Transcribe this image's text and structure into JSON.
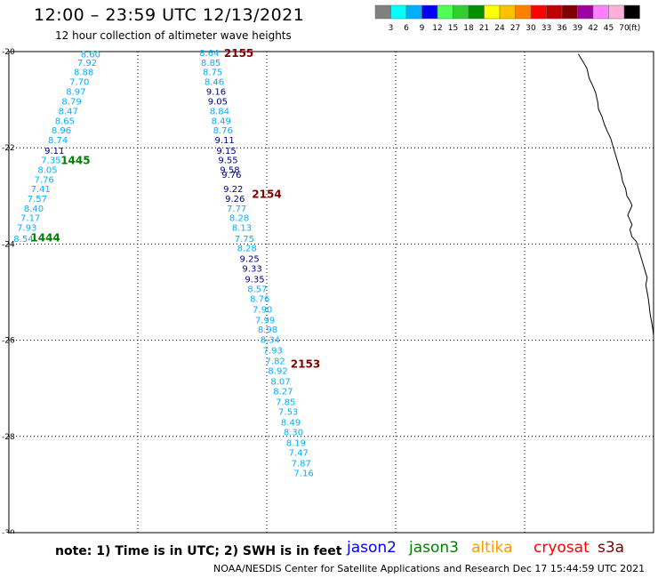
{
  "header": {
    "title": "12:00 – 23:59 UTC 12/13/2021",
    "subtitle": "12 hour collection of altimeter wave heights"
  },
  "colorbar": {
    "unit_label": "(ft)",
    "colors": [
      "#808080",
      "#00ffff",
      "#00b0ff",
      "#0000ff",
      "#50ff50",
      "#30d030",
      "#009000",
      "#ffff00",
      "#ffc000",
      "#ff8000",
      "#ff0000",
      "#c00000",
      "#800000",
      "#a000a0",
      "#ff80ff",
      "#ffb0d8",
      "#000000"
    ],
    "labels": [
      "3",
      "6",
      "9",
      "12",
      "15",
      "18",
      "21",
      "24",
      "27",
      "30",
      "33",
      "36",
      "39",
      "42",
      "45",
      "70"
    ]
  },
  "chart_data": {
    "type": "map",
    "xlim": [
      0,
      15
    ],
    "ylim": [
      -30,
      -20
    ],
    "x_ticks": [
      "0",
      "3",
      "6",
      "9",
      "12",
      "15"
    ],
    "y_ticks": [
      "-20",
      "-22",
      "-24",
      "-26",
      "-28",
      "-30"
    ],
    "passes": [
      {
        "id": "pass-left",
        "labels": [
          {
            "text": "1445",
            "color": "#008000",
            "x": 1.55,
            "y": -22.25
          },
          {
            "text": "1444",
            "color": "#008000",
            "x": 0.85,
            "y": -23.85
          }
        ],
        "points": [
          {
            "x": 1.9,
            "y": -20.05,
            "v": "8.60",
            "c": "#00b0ff"
          },
          {
            "x": 1.82,
            "y": -20.22,
            "v": "7.92",
            "c": "#00b0ff"
          },
          {
            "x": 1.74,
            "y": -20.42,
            "v": "8.88",
            "c": "#00b0ff"
          },
          {
            "x": 1.64,
            "y": -20.62,
            "v": "7.70",
            "c": "#00b0ff"
          },
          {
            "x": 1.56,
            "y": -20.82,
            "v": "8.97",
            "c": "#00b0ff"
          },
          {
            "x": 1.46,
            "y": -21.03,
            "v": "8.79",
            "c": "#00b0ff"
          },
          {
            "x": 1.38,
            "y": -21.23,
            "v": "8.47",
            "c": "#00b0ff"
          },
          {
            "x": 1.3,
            "y": -21.43,
            "v": "8.65",
            "c": "#00b0ff"
          },
          {
            "x": 1.22,
            "y": -21.63,
            "v": "8.96",
            "c": "#00b0ff"
          },
          {
            "x": 1.14,
            "y": -21.83,
            "v": "8.74",
            "c": "#00b0ff"
          },
          {
            "x": 1.06,
            "y": -22.05,
            "v": "9.11",
            "c": "#000080"
          },
          {
            "x": 0.98,
            "y": -22.25,
            "v": "7.35",
            "c": "#00b0ff"
          },
          {
            "x": 0.9,
            "y": -22.45,
            "v": "8.05",
            "c": "#00b0ff"
          },
          {
            "x": 0.82,
            "y": -22.65,
            "v": "7.76",
            "c": "#00b0ff"
          },
          {
            "x": 0.74,
            "y": -22.85,
            "v": "7.41",
            "c": "#00b0ff"
          },
          {
            "x": 0.66,
            "y": -23.05,
            "v": "7.57",
            "c": "#00b0ff"
          },
          {
            "x": 0.58,
            "y": -23.25,
            "v": "8.40",
            "c": "#00b0ff"
          },
          {
            "x": 0.5,
            "y": -23.45,
            "v": "7.17",
            "c": "#00b0ff"
          },
          {
            "x": 0.42,
            "y": -23.65,
            "v": "7.93",
            "c": "#00b0ff"
          },
          {
            "x": 0.34,
            "y": -23.88,
            "v": "8.54",
            "c": "#00b0ff"
          }
        ]
      },
      {
        "id": "pass-right",
        "labels": [
          {
            "text": "2155",
            "color": "#800000",
            "x": 5.35,
            "y": -20.02
          },
          {
            "text": "2154",
            "color": "#800000",
            "x": 6.0,
            "y": -22.95
          },
          {
            "text": "2153",
            "color": "#800000",
            "x": 6.9,
            "y": -26.48
          }
        ],
        "points": [
          {
            "x": 4.66,
            "y": -20.02,
            "v": "8.64",
            "c": "#00b0ff"
          },
          {
            "x": 4.7,
            "y": -20.22,
            "v": "8.85",
            "c": "#00b0ff"
          },
          {
            "x": 4.74,
            "y": -20.42,
            "v": "8.75",
            "c": "#00b0ff"
          },
          {
            "x": 4.78,
            "y": -20.62,
            "v": "8.46",
            "c": "#00b0ff"
          },
          {
            "x": 4.82,
            "y": -20.82,
            "v": "9.16",
            "c": "#000080"
          },
          {
            "x": 4.86,
            "y": -21.03,
            "v": "9.05",
            "c": "#000080"
          },
          {
            "x": 4.9,
            "y": -21.23,
            "v": "8.84",
            "c": "#00b0ff"
          },
          {
            "x": 4.94,
            "y": -21.43,
            "v": "8.49",
            "c": "#00b0ff"
          },
          {
            "x": 4.98,
            "y": -21.63,
            "v": "8.76",
            "c": "#00b0ff"
          },
          {
            "x": 5.02,
            "y": -21.83,
            "v": "9.11",
            "c": "#000080"
          },
          {
            "x": 5.06,
            "y": -22.05,
            "v": "9.15",
            "c": "#000080"
          },
          {
            "x": 5.1,
            "y": -22.25,
            "v": "9.55",
            "c": "#000080"
          },
          {
            "x": 5.14,
            "y": -22.45,
            "v": "9.58",
            "c": "#000080"
          },
          {
            "x": 5.18,
            "y": -22.55,
            "v": "9.76",
            "c": "#000080"
          },
          {
            "x": 5.22,
            "y": -22.85,
            "v": "9.22",
            "c": "#000080"
          },
          {
            "x": 5.26,
            "y": -23.05,
            "v": "9.26",
            "c": "#000080"
          },
          {
            "x": 5.3,
            "y": -23.25,
            "v": "7.77",
            "c": "#00b0ff"
          },
          {
            "x": 5.36,
            "y": -23.45,
            "v": "8.28",
            "c": "#00b0ff"
          },
          {
            "x": 5.42,
            "y": -23.65,
            "v": "8.13",
            "c": "#00b0ff"
          },
          {
            "x": 5.48,
            "y": -23.88,
            "v": "7.75",
            "c": "#00b0ff"
          },
          {
            "x": 5.54,
            "y": -24.08,
            "v": "8.28",
            "c": "#00b0ff"
          },
          {
            "x": 5.6,
            "y": -24.3,
            "v": "9.25",
            "c": "#000080"
          },
          {
            "x": 5.66,
            "y": -24.5,
            "v": "9.33",
            "c": "#000080"
          },
          {
            "x": 5.72,
            "y": -24.72,
            "v": "9.35",
            "c": "#000080"
          },
          {
            "x": 5.78,
            "y": -24.93,
            "v": "8.57",
            "c": "#00b0ff"
          },
          {
            "x": 5.84,
            "y": -25.13,
            "v": "8.76",
            "c": "#00b0ff"
          },
          {
            "x": 5.9,
            "y": -25.35,
            "v": "7.90",
            "c": "#00b0ff"
          },
          {
            "x": 5.96,
            "y": -25.57,
            "v": "7.99",
            "c": "#00b0ff"
          },
          {
            "x": 6.02,
            "y": -25.77,
            "v": "8.98",
            "c": "#00b0ff"
          },
          {
            "x": 6.08,
            "y": -25.98,
            "v": "8.34",
            "c": "#00b0ff"
          },
          {
            "x": 6.14,
            "y": -26.2,
            "v": "7.93",
            "c": "#00b0ff"
          },
          {
            "x": 6.2,
            "y": -26.42,
            "v": "7.82",
            "c": "#00b0ff"
          },
          {
            "x": 6.26,
            "y": -26.63,
            "v": "8.92",
            "c": "#00b0ff"
          },
          {
            "x": 6.32,
            "y": -26.85,
            "v": "8.07",
            "c": "#00b0ff"
          },
          {
            "x": 6.38,
            "y": -27.05,
            "v": "8.27",
            "c": "#00b0ff"
          },
          {
            "x": 6.44,
            "y": -27.27,
            "v": "7.85",
            "c": "#00b0ff"
          },
          {
            "x": 6.5,
            "y": -27.48,
            "v": "7.53",
            "c": "#00b0ff"
          },
          {
            "x": 6.56,
            "y": -27.7,
            "v": "8.49",
            "c": "#00b0ff"
          },
          {
            "x": 6.62,
            "y": -27.9,
            "v": "8.30",
            "c": "#00b0ff"
          },
          {
            "x": 6.68,
            "y": -28.12,
            "v": "8.19",
            "c": "#00b0ff"
          },
          {
            "x": 6.74,
            "y": -28.33,
            "v": "7.47",
            "c": "#00b0ff"
          },
          {
            "x": 6.8,
            "y": -28.55,
            "v": "7.87",
            "c": "#00b0ff"
          },
          {
            "x": 6.86,
            "y": -28.75,
            "v": "7.16",
            "c": "#00b0ff"
          }
        ]
      }
    ],
    "coastline": [
      [
        13.25,
        -20.05
      ],
      [
        13.35,
        -20.2
      ],
      [
        13.45,
        -20.35
      ],
      [
        13.5,
        -20.55
      ],
      [
        13.58,
        -20.7
      ],
      [
        13.65,
        -20.85
      ],
      [
        13.7,
        -21.05
      ],
      [
        13.72,
        -21.2
      ],
      [
        13.8,
        -21.35
      ],
      [
        13.85,
        -21.5
      ],
      [
        13.92,
        -21.65
      ],
      [
        14.0,
        -21.8
      ],
      [
        14.05,
        -21.95
      ],
      [
        14.1,
        -22.1
      ],
      [
        14.15,
        -22.25
      ],
      [
        14.2,
        -22.4
      ],
      [
        14.25,
        -22.55
      ],
      [
        14.28,
        -22.7
      ],
      [
        14.35,
        -22.85
      ],
      [
        14.38,
        -23.0
      ],
      [
        14.45,
        -23.1
      ],
      [
        14.5,
        -23.2
      ],
      [
        14.45,
        -23.3
      ],
      [
        14.4,
        -23.4
      ],
      [
        14.45,
        -23.5
      ],
      [
        14.5,
        -23.6
      ],
      [
        14.45,
        -23.7
      ],
      [
        14.5,
        -23.85
      ],
      [
        14.6,
        -23.95
      ],
      [
        14.65,
        -24.1
      ],
      [
        14.7,
        -24.25
      ],
      [
        14.75,
        -24.4
      ],
      [
        14.8,
        -24.55
      ],
      [
        14.85,
        -24.7
      ],
      [
        14.82,
        -24.85
      ],
      [
        14.85,
        -25.0
      ],
      [
        14.88,
        -25.15
      ],
      [
        14.9,
        -25.3
      ],
      [
        14.92,
        -25.45
      ],
      [
        14.95,
        -25.6
      ],
      [
        14.98,
        -25.75
      ],
      [
        15.0,
        -25.9
      ]
    ]
  },
  "legend": {
    "sats": [
      {
        "label": "jason2",
        "color": "#0000ff"
      },
      {
        "label": "jason3",
        "color": "#008000"
      },
      {
        "label": "altika",
        "color": "#ff9900"
      },
      {
        "label": "cryosat",
        "color": "#ff0000"
      },
      {
        "label": "s3a",
        "color": "#800000"
      }
    ]
  },
  "footer": {
    "note": "note:  1) Time is in UTC;  2) SWH is in feet",
    "credit": "NOAA/NESDIS Center for Satellite Applications and Research    Dec 17 15:44:59 UTC 2021"
  }
}
